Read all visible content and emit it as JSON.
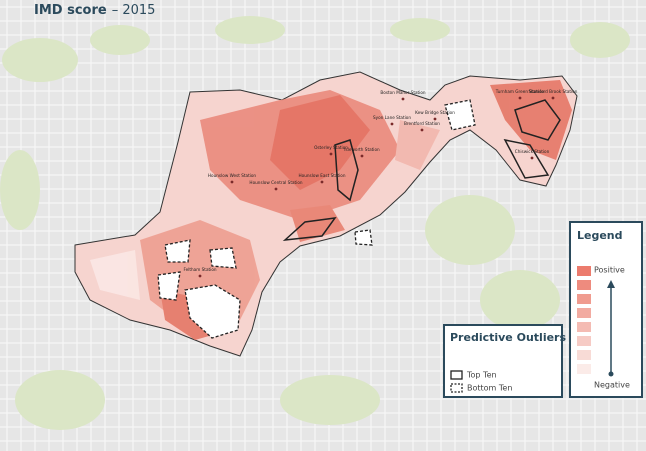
{
  "header": {
    "title": "IMD score",
    "subtitle": "– 2015"
  },
  "stations": [
    "Boston Manor Station",
    "Turnham Green Station",
    "Stamford Brook Station",
    "Kew Bridge Station",
    "Brentford Station",
    "Chiswick Station",
    "Syon Lane Station",
    "Isleworth Station",
    "Osterley Station",
    "Hounslow West Station",
    "Hounslow Central Station",
    "Hounslow East Station",
    "Feltham Station"
  ],
  "legend": {
    "title": "Legend",
    "high": "Positive",
    "low": "Negative"
  },
  "outliers": {
    "title": "Predictive Outliers",
    "items": [
      "Top Ten",
      "Bottom Ten"
    ]
  }
}
